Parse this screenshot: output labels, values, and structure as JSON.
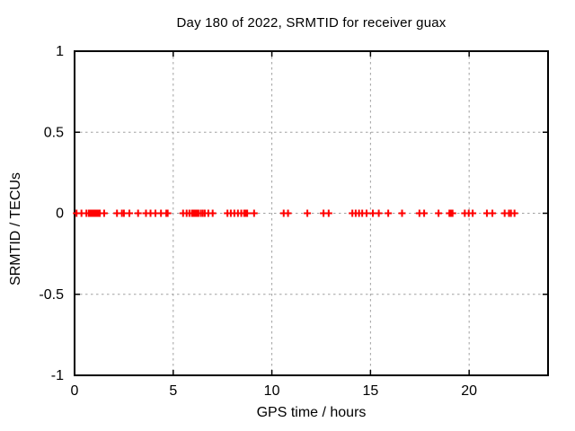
{
  "chart_data": {
    "type": "scatter",
    "title": "Day 180 of 2022, SRMTID for receiver guax",
    "xlabel": "GPS time / hours",
    "ylabel": "SRMTID / TECUs",
    "xlim": [
      0,
      24
    ],
    "ylim": [
      -1,
      1
    ],
    "grid": true,
    "grid_style": "dashed",
    "legend": "none",
    "xticks": {
      "values": [
        0,
        5,
        10,
        15,
        20
      ],
      "labels": [
        "0",
        "5",
        "10",
        "15",
        "20"
      ]
    },
    "yticks": {
      "values": [
        1,
        0.5,
        0,
        -0.5,
        -1
      ],
      "labels": [
        "1",
        "0.5",
        "0",
        "-0.5",
        "-1"
      ]
    },
    "colors": {
      "marker": "#ff0000",
      "grid": "#a0a0a0",
      "axis": "#000000",
      "background": "#ffffff"
    },
    "series": [
      {
        "name": "SRMTID",
        "marker": "plus",
        "color": "#ff0000",
        "y_constant": 0,
        "x_hours": [
          0.1,
          0.35,
          0.6,
          0.72,
          0.76,
          0.8,
          0.84,
          0.88,
          0.92,
          0.96,
          1.0,
          1.04,
          1.08,
          1.12,
          1.16,
          1.2,
          1.24,
          1.28,
          1.5,
          2.15,
          2.4,
          2.5,
          2.78,
          3.22,
          3.62,
          3.85,
          4.1,
          4.38,
          4.65,
          4.72,
          5.5,
          5.68,
          5.82,
          5.95,
          6.02,
          6.08,
          6.14,
          6.2,
          6.28,
          6.4,
          6.5,
          6.6,
          6.78,
          7.0,
          7.75,
          7.92,
          8.1,
          8.28,
          8.45,
          8.6,
          8.68,
          8.75,
          9.1,
          10.6,
          10.82,
          11.8,
          12.62,
          12.88,
          14.08,
          14.25,
          14.42,
          14.58,
          14.8,
          15.12,
          15.42,
          15.9,
          16.6,
          17.48,
          17.72,
          18.45,
          19.0,
          19.08,
          19.16,
          19.78,
          19.98,
          20.18,
          20.9,
          21.18,
          21.8,
          22.02,
          22.12,
          22.3
        ]
      }
    ]
  }
}
